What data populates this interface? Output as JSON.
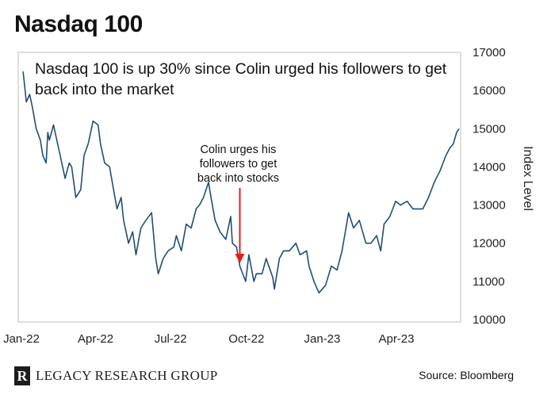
{
  "title": "Nasdaq 100",
  "source": "Source: Bloomberg",
  "brand": {
    "mark": "R",
    "name": "LEGACY RESEARCH GROUP"
  },
  "chart_data": {
    "type": "line",
    "headline": "Nasdaq 100 is up 30% since Colin urged his followers to get back into the market",
    "ylabel": "Index Level",
    "ylim": [
      10000,
      17000
    ],
    "yticks": [
      10000,
      11000,
      12000,
      13000,
      14000,
      15000,
      16000,
      17000
    ],
    "xticks": [
      {
        "label": "Jan-22",
        "date": "2022-01-01"
      },
      {
        "label": "Apr-22",
        "date": "2022-04-01"
      },
      {
        "label": "Jul-22",
        "date": "2022-07-01"
      },
      {
        "label": "Oct-22",
        "date": "2022-10-01"
      },
      {
        "label": "Jan-23",
        "date": "2023-01-01"
      },
      {
        "label": "Apr-23",
        "date": "2023-04-01"
      }
    ],
    "xlim": [
      "2022-01-01",
      "2023-06-16"
    ],
    "annotation": {
      "lines": [
        "Colin urges his",
        "followers to get",
        "back into stocks"
      ],
      "date": "2022-09-23",
      "value": 11600
    },
    "line_color": "#1f4e79",
    "series": [
      {
        "points": [
          [
            "2022-01-03",
            16500
          ],
          [
            "2022-01-05",
            16100
          ],
          [
            "2022-01-07",
            15700
          ],
          [
            "2022-01-11",
            15900
          ],
          [
            "2022-01-14",
            15600
          ],
          [
            "2022-01-19",
            15000
          ],
          [
            "2022-01-24",
            14700
          ],
          [
            "2022-01-27",
            14300
          ],
          [
            "2022-01-31",
            14100
          ],
          [
            "2022-02-02",
            14900
          ],
          [
            "2022-02-04",
            14700
          ],
          [
            "2022-02-09",
            15100
          ],
          [
            "2022-02-14",
            14600
          ],
          [
            "2022-02-17",
            14300
          ],
          [
            "2022-02-23",
            13700
          ],
          [
            "2022-02-28",
            14100
          ],
          [
            "2022-03-03",
            14000
          ],
          [
            "2022-03-08",
            13200
          ],
          [
            "2022-03-14",
            13400
          ],
          [
            "2022-03-18",
            14300
          ],
          [
            "2022-03-23",
            14600
          ],
          [
            "2022-03-29",
            15200
          ],
          [
            "2022-04-04",
            15100
          ],
          [
            "2022-04-07",
            14600
          ],
          [
            "2022-04-12",
            14100
          ],
          [
            "2022-04-18",
            14000
          ],
          [
            "2022-04-22",
            13500
          ],
          [
            "2022-04-27",
            12900
          ],
          [
            "2022-05-02",
            13200
          ],
          [
            "2022-05-05",
            12600
          ],
          [
            "2022-05-11",
            12000
          ],
          [
            "2022-05-16",
            12300
          ],
          [
            "2022-05-20",
            11700
          ],
          [
            "2022-05-26",
            12400
          ],
          [
            "2022-06-01",
            12600
          ],
          [
            "2022-06-08",
            12800
          ],
          [
            "2022-06-13",
            11600
          ],
          [
            "2022-06-16",
            11200
          ],
          [
            "2022-06-22",
            11600
          ],
          [
            "2022-06-28",
            11800
          ],
          [
            "2022-07-05",
            11900
          ],
          [
            "2022-07-08",
            12200
          ],
          [
            "2022-07-14",
            11800
          ],
          [
            "2022-07-20",
            12500
          ],
          [
            "2022-07-26",
            12400
          ],
          [
            "2022-08-01",
            12900
          ],
          [
            "2022-08-05",
            13000
          ],
          [
            "2022-08-10",
            13200
          ],
          [
            "2022-08-16",
            13600
          ],
          [
            "2022-08-19",
            13200
          ],
          [
            "2022-08-24",
            12600
          ],
          [
            "2022-08-30",
            12300
          ],
          [
            "2022-09-06",
            12100
          ],
          [
            "2022-09-12",
            12700
          ],
          [
            "2022-09-14",
            12000
          ],
          [
            "2022-09-19",
            11900
          ],
          [
            "2022-09-23",
            11400
          ],
          [
            "2022-09-30",
            11000
          ],
          [
            "2022-10-04",
            11700
          ],
          [
            "2022-10-10",
            11000
          ],
          [
            "2022-10-13",
            11200
          ],
          [
            "2022-10-20",
            11200
          ],
          [
            "2022-10-25",
            11600
          ],
          [
            "2022-11-02",
            11100
          ],
          [
            "2022-11-04",
            10800
          ],
          [
            "2022-11-10",
            11600
          ],
          [
            "2022-11-15",
            11800
          ],
          [
            "2022-11-22",
            11800
          ],
          [
            "2022-11-30",
            12000
          ],
          [
            "2022-12-05",
            11700
          ],
          [
            "2022-12-13",
            11800
          ],
          [
            "2022-12-16",
            11400
          ],
          [
            "2022-12-22",
            11000
          ],
          [
            "2022-12-28",
            10700
          ],
          [
            "2023-01-05",
            10900
          ],
          [
            "2023-01-12",
            11400
          ],
          [
            "2023-01-19",
            11300
          ],
          [
            "2023-01-25",
            11800
          ],
          [
            "2023-02-02",
            12800
          ],
          [
            "2023-02-08",
            12400
          ],
          [
            "2023-02-15",
            12600
          ],
          [
            "2023-02-23",
            12000
          ],
          [
            "2023-03-01",
            12000
          ],
          [
            "2023-03-08",
            12200
          ],
          [
            "2023-03-13",
            11800
          ],
          [
            "2023-03-17",
            12500
          ],
          [
            "2023-03-24",
            12700
          ],
          [
            "2023-03-31",
            13100
          ],
          [
            "2023-04-06",
            13000
          ],
          [
            "2023-04-14",
            13100
          ],
          [
            "2023-04-21",
            12900
          ],
          [
            "2023-04-27",
            12900
          ],
          [
            "2023-05-03",
            12900
          ],
          [
            "2023-05-10",
            13200
          ],
          [
            "2023-05-17",
            13600
          ],
          [
            "2023-05-24",
            13900
          ],
          [
            "2023-05-31",
            14300
          ],
          [
            "2023-06-05",
            14500
          ],
          [
            "2023-06-09",
            14600
          ],
          [
            "2023-06-13",
            14900
          ],
          [
            "2023-06-16",
            15000
          ]
        ]
      }
    ]
  }
}
